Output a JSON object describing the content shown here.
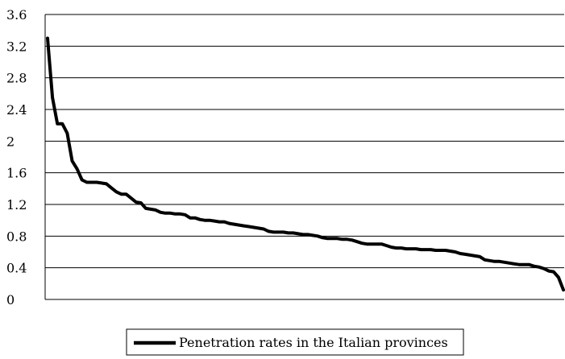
{
  "chart_data": {
    "type": "line",
    "title": "",
    "xlabel": "",
    "ylabel": "",
    "ylim": [
      0,
      3.6
    ],
    "y_ticks": [
      "0",
      "0.4",
      "0.8",
      "1.2",
      "1.6",
      "2",
      "2.4",
      "2.8",
      "3.2",
      "3.6"
    ],
    "grid": "horizontal",
    "legend_position": "bottom-center",
    "line_color": "#000000",
    "series": [
      {
        "name": "Penetration rates in the Italian provinces",
        "values": [
          3.3,
          2.55,
          2.22,
          2.22,
          2.1,
          1.75,
          1.65,
          1.51,
          1.48,
          1.48,
          1.48,
          1.47,
          1.46,
          1.41,
          1.36,
          1.33,
          1.33,
          1.28,
          1.23,
          1.22,
          1.15,
          1.14,
          1.13,
          1.1,
          1.09,
          1.09,
          1.08,
          1.08,
          1.07,
          1.03,
          1.03,
          1.01,
          1.0,
          1.0,
          0.99,
          0.98,
          0.98,
          0.96,
          0.95,
          0.94,
          0.93,
          0.92,
          0.91,
          0.9,
          0.89,
          0.86,
          0.85,
          0.85,
          0.85,
          0.84,
          0.84,
          0.83,
          0.82,
          0.82,
          0.81,
          0.8,
          0.78,
          0.77,
          0.77,
          0.77,
          0.76,
          0.76,
          0.75,
          0.73,
          0.71,
          0.7,
          0.7,
          0.7,
          0.7,
          0.68,
          0.66,
          0.65,
          0.65,
          0.64,
          0.64,
          0.64,
          0.63,
          0.63,
          0.63,
          0.62,
          0.62,
          0.62,
          0.61,
          0.6,
          0.58,
          0.57,
          0.56,
          0.55,
          0.54,
          0.5,
          0.49,
          0.48,
          0.48,
          0.47,
          0.46,
          0.45,
          0.44,
          0.44,
          0.44,
          0.42,
          0.41,
          0.39,
          0.36,
          0.35,
          0.28,
          0.12
        ]
      }
    ]
  }
}
